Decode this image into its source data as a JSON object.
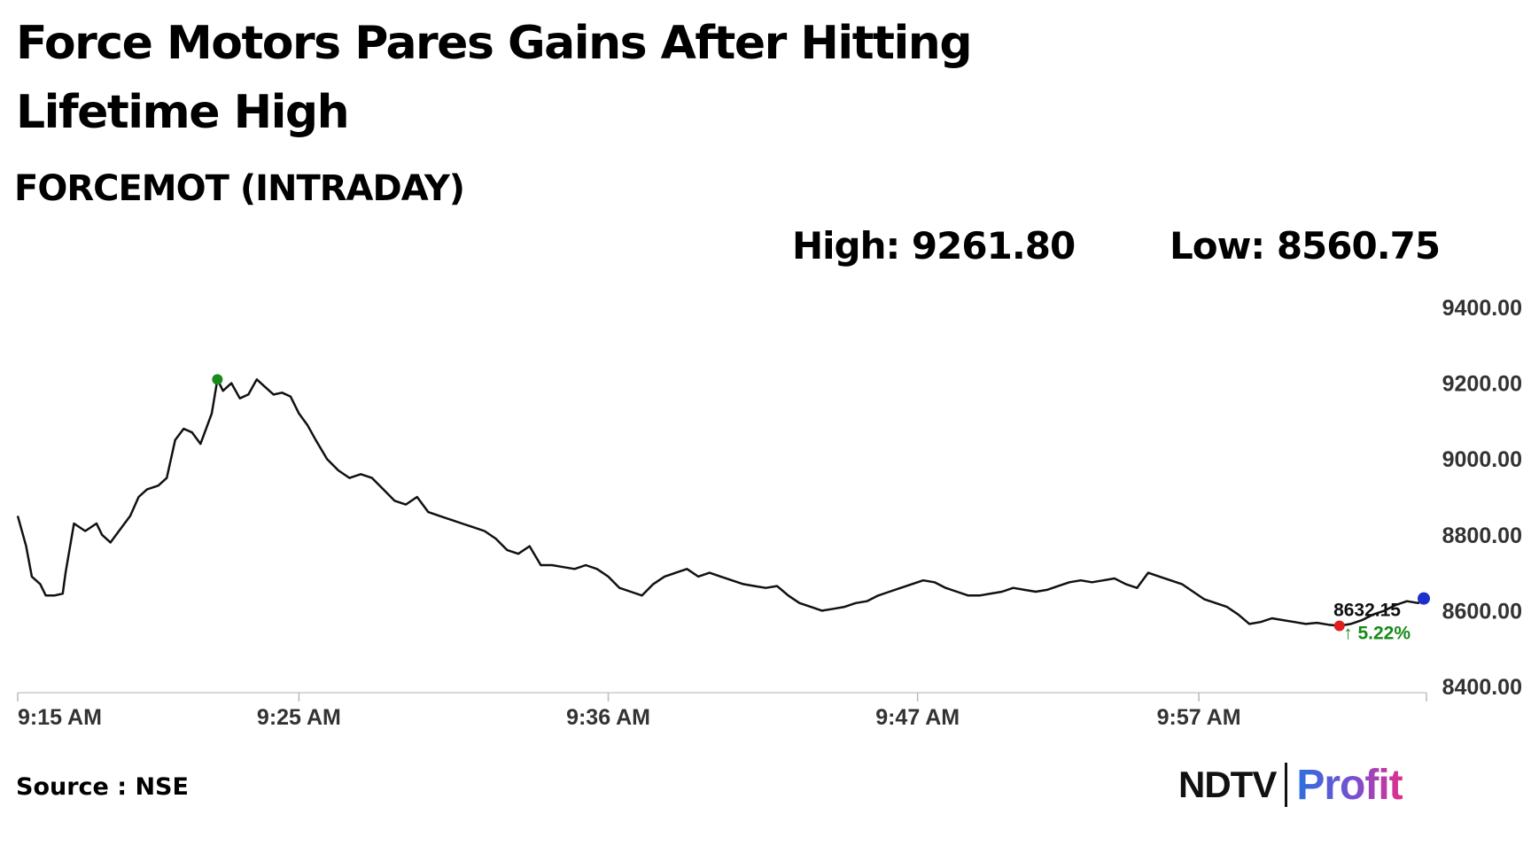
{
  "title": "Force Motors Pares Gains After Hitting Lifetime High",
  "subtitle": "FORCEMOT (INTRADAY)",
  "stats": {
    "high": "High: 9261.80",
    "low": "Low: 8560.75"
  },
  "source": "Source : NSE",
  "logo": {
    "ndtv": "NDTV",
    "profit": "Profit"
  },
  "chart_data": {
    "type": "line",
    "x_ticks": [
      "9:15 AM",
      "9:25 AM",
      "9:36 AM",
      "9:47 AM",
      "9:57 AM"
    ],
    "x_tick_minutes": [
      0,
      10,
      21,
      32,
      42
    ],
    "y_ticks": [
      "9400.00",
      "9200.00",
      "9000.00",
      "8800.00",
      "8600.00",
      "8400.00"
    ],
    "ylim": [
      8400,
      9400
    ],
    "xlim_minutes": [
      0,
      50
    ],
    "last_value": "8632.15",
    "last_change": "↑ 5.22%",
    "colors": {
      "line": "#111111",
      "high_marker": "#1a8a1a",
      "low_marker": "#e02020",
      "last_marker": "#1f2fcc",
      "change_text": "#1a8a1a"
    },
    "series": [
      {
        "x": [
          0,
          0.3,
          0.5,
          0.8,
          1.0,
          1.3,
          1.6,
          1.7,
          2.0,
          2.4,
          2.8,
          3.0,
          3.3,
          3.7,
          4.0,
          4.3,
          4.6,
          5.0,
          5.3,
          5.6,
          5.9,
          6.2,
          6.5,
          6.9,
          7.1,
          7.3,
          7.6,
          7.9,
          8.2,
          8.5,
          8.8,
          9.1,
          9.4,
          9.7,
          10.0,
          10.3,
          10.6,
          11.0,
          11.4,
          11.8,
          12.2,
          12.6,
          13.0,
          13.4,
          13.8,
          14.2,
          14.6,
          15.0,
          15.4,
          15.8,
          16.2,
          16.6,
          17.0,
          17.4,
          17.8,
          18.2,
          18.6,
          19.0,
          19.4,
          19.8,
          20.2,
          20.6,
          21.0,
          21.4,
          21.8,
          22.2,
          22.6,
          23.0,
          23.4,
          23.8,
          24.2,
          24.6,
          25.0,
          25.4,
          25.8,
          26.2,
          26.6,
          27.0,
          27.4,
          27.8,
          28.2,
          28.6,
          29.0,
          29.4,
          29.8,
          30.2,
          30.6,
          31.0,
          31.4,
          31.8,
          32.2,
          32.6,
          33.0,
          33.4,
          33.8,
          34.2,
          34.6,
          35.0,
          35.4,
          35.8,
          36.2,
          36.6,
          37.0,
          37.4,
          37.8,
          38.2,
          38.6,
          39.0,
          39.4,
          39.8,
          40.2,
          40.6,
          41.0,
          41.4,
          41.8,
          42.2,
          42.6,
          43.0,
          43.4,
          43.8,
          44.2,
          44.6,
          45.0,
          45.4,
          45.8,
          46.2,
          46.6,
          47.0,
          47.4,
          47.8,
          48.2,
          48.6,
          49.0,
          49.4,
          49.8,
          50.0
        ],
        "values": [
          8850,
          8770,
          8690,
          8670,
          8640,
          8640,
          8645,
          8700,
          8830,
          8810,
          8830,
          8800,
          8780,
          8820,
          8850,
          8900,
          8920,
          8930,
          8950,
          9050,
          9080,
          9070,
          9040,
          9120,
          9210,
          9180,
          9200,
          9160,
          9170,
          9210,
          9190,
          9170,
          9175,
          9165,
          9120,
          9090,
          9050,
          9000,
          8970,
          8950,
          8960,
          8950,
          8920,
          8890,
          8880,
          8900,
          8860,
          8850,
          8840,
          8830,
          8820,
          8810,
          8790,
          8760,
          8750,
          8770,
          8720,
          8720,
          8715,
          8710,
          8720,
          8710,
          8690,
          8660,
          8650,
          8640,
          8670,
          8690,
          8700,
          8710,
          8690,
          8700,
          8690,
          8680,
          8670,
          8665,
          8660,
          8665,
          8640,
          8620,
          8610,
          8600,
          8605,
          8610,
          8620,
          8625,
          8640,
          8650,
          8660,
          8670,
          8680,
          8675,
          8660,
          8650,
          8640,
          8640,
          8645,
          8650,
          8660,
          8655,
          8650,
          8655,
          8665,
          8675,
          8680,
          8675,
          8680,
          8685,
          8670,
          8660,
          8700,
          8690,
          8680,
          8670,
          8650,
          8630,
          8620,
          8610,
          8590,
          8565,
          8570,
          8580,
          8575,
          8570,
          8565,
          8568,
          8563,
          8560,
          8565,
          8575,
          8590,
          8600,
          8615,
          8625,
          8620,
          8632.15
        ]
      }
    ]
  }
}
